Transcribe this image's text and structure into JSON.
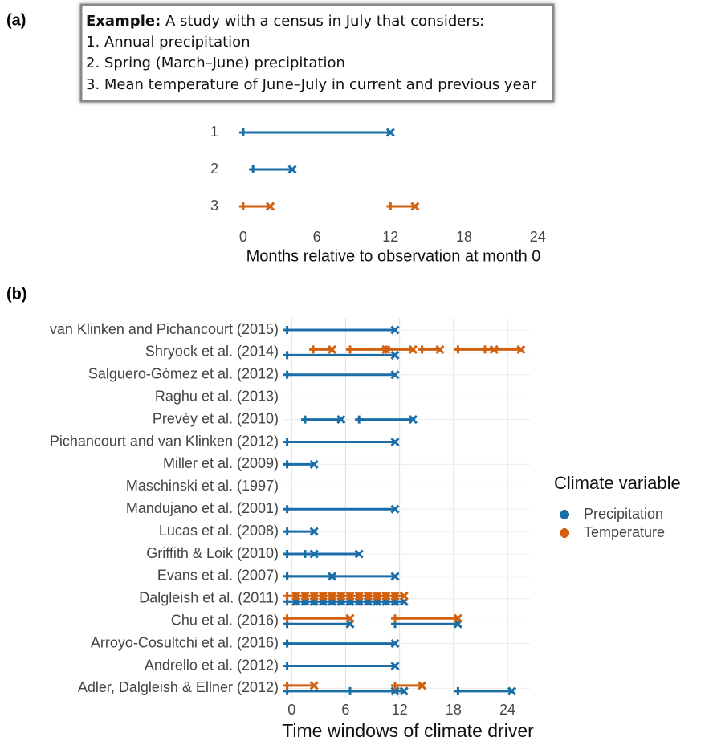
{
  "chart_data": [
    {
      "type": "range",
      "panel_label": "(a)",
      "annotation": {
        "bold": "Example:",
        "text": "A study with a census in July that considers:",
        "lines": [
          "1. Annual precipitation",
          "2. Spring (March–June) precipitation",
          "3. Mean temperature of June–July in current and previous year"
        ]
      },
      "categories": [
        "1",
        "2",
        "3"
      ],
      "series": [
        {
          "color": "#1a6ea8",
          "values": [
            [
              [
                0,
                12
              ]
            ],
            [
              [
                0.8,
                4
              ]
            ],
            []
          ]
        },
        {
          "color": "#d2600f",
          "values": [
            [],
            [],
            [
              [
                0,
                2.2
              ],
              [
                12,
                14
              ]
            ]
          ]
        }
      ],
      "xlabel": "Months relative to observation at month 0",
      "xlim": [
        -1.5,
        25
      ],
      "xticks": [
        0,
        6,
        12,
        18,
        24
      ],
      "grid": false
    },
    {
      "type": "range",
      "panel_label": "(b)",
      "categories": [
        "van Klinken and Pichancourt (2015)",
        "Shryock et al. (2014)",
        "Salguero-Gómez et al. (2012)",
        "Raghu et al. (2013)",
        "Prevéy et al. (2010)",
        "Pichancourt and van Klinken (2012)",
        "Miller et al. (2009)",
        "Maschinski et al. (1997)",
        "Mandujano et al. (2001)",
        "Lucas et al. (2008)",
        "Griffith & Loik (2010)",
        "Evans et al. (2007)",
        "Dalgleish et al. (2011)",
        "Chu et al. (2016)",
        "Arroyo-Cosultchi et al. (2016)",
        "Andrello et al. (2012)",
        "Adler, Dalgleish & Ellner (2012)"
      ],
      "series": [
        {
          "name": "Precipitation",
          "color": "#1a6ea8",
          "values": [
            [
              [
                -0.5,
                11.5
              ]
            ],
            [
              [
                -0.5,
                11.5
              ]
            ],
            [
              [
                -0.5,
                11.5
              ]
            ],
            [],
            [
              [
                1.5,
                5.5
              ],
              [
                7.5,
                13.5
              ]
            ],
            [
              [
                -0.5,
                11.5
              ]
            ],
            [
              [
                -0.5,
                2.5
              ]
            ],
            [],
            [
              [
                -0.5,
                11.5
              ]
            ],
            [
              [
                -0.5,
                2.5
              ]
            ],
            [
              [
                -0.5,
                2.5
              ],
              [
                1.5,
                7.5
              ]
            ],
            [
              [
                -0.5,
                4.5
              ],
              [
                -0.5,
                11.5
              ]
            ],
            [
              [
                -0.5,
                0.5
              ],
              [
                0.5,
                1.5
              ],
              [
                1.5,
                2.5
              ],
              [
                2.5,
                3.5
              ],
              [
                3.5,
                4.5
              ],
              [
                4.5,
                5.5
              ],
              [
                5.5,
                6.5
              ],
              [
                6.5,
                7.5
              ],
              [
                7.5,
                8.5
              ],
              [
                8.5,
                9.5
              ],
              [
                9.5,
                10.5
              ],
              [
                10.5,
                11.5
              ],
              [
                11.5,
                12.5
              ]
            ],
            [
              [
                -0.5,
                6.5
              ],
              [
                11.5,
                18.5
              ]
            ],
            [
              [
                -0.5,
                11.5
              ]
            ],
            [
              [
                -0.5,
                11.5
              ]
            ],
            [
              [
                -0.5,
                11.5
              ],
              [
                6.5,
                12.5
              ],
              [
                18.5,
                24.5
              ]
            ]
          ]
        },
        {
          "name": "Temperature",
          "color": "#d2600f",
          "values": [
            [],
            [
              [
                2.4,
                4.5
              ],
              [
                6.5,
                10.5
              ],
              [
                10.5,
                13.5
              ],
              [
                14.5,
                16.5
              ],
              [
                18.5,
                22.5
              ],
              [
                21.5,
                25.5
              ]
            ],
            [],
            [],
            [],
            [],
            [],
            [],
            [],
            [],
            [],
            [],
            [
              [
                -0.5,
                0.5
              ],
              [
                0.5,
                1.5
              ],
              [
                1.5,
                2.5
              ],
              [
                2.5,
                3.5
              ],
              [
                3.5,
                4.5
              ],
              [
                4.5,
                5.5
              ],
              [
                5.5,
                6.5
              ],
              [
                6.5,
                7.5
              ],
              [
                7.5,
                8.5
              ],
              [
                8.5,
                9.5
              ],
              [
                9.5,
                10.5
              ],
              [
                10.5,
                11.5
              ],
              [
                11.5,
                12.5
              ]
            ],
            [
              [
                -0.5,
                6.5
              ],
              [
                11.5,
                18.5
              ]
            ],
            [],
            [],
            [
              [
                -0.5,
                2.5
              ],
              [
                11.5,
                14.5
              ]
            ]
          ]
        }
      ],
      "xlabel": "Time windows of climate driver",
      "legend_title": "Climate variable",
      "legend_position": "right",
      "xlim": [
        -1,
        26.5
      ],
      "xticks": [
        0,
        6,
        12,
        18,
        24
      ],
      "grid": true
    }
  ]
}
